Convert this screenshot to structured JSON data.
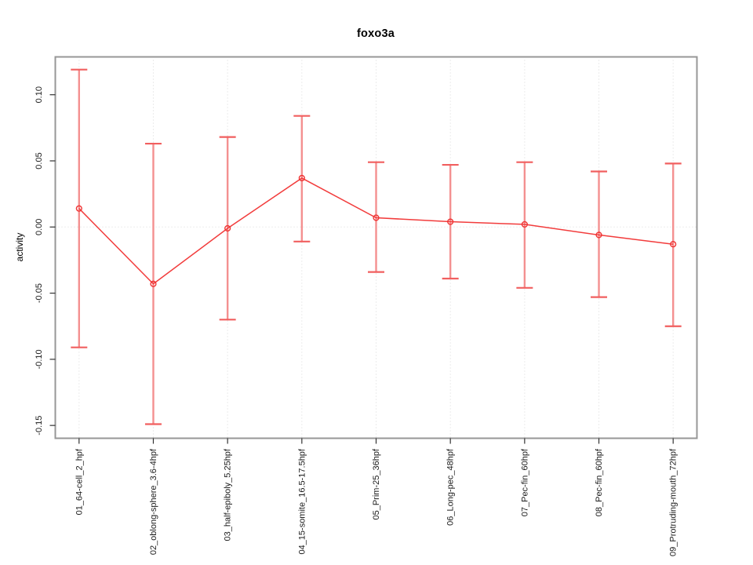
{
  "title": "foxo3a",
  "y_axis_title": "activity",
  "chart_data": {
    "type": "line",
    "title": "foxo3a",
    "xlabel": "",
    "ylabel": "activity",
    "categories": [
      "01_64-cell_2_hpf",
      "02_oblong-sphere_3.6-4hpf",
      "03_half-epiboly_5.25hpf",
      "04_15-somite_16.5-17.5hpf",
      "05_Prim-25_36hpf",
      "06_Long-pec_48hpf",
      "07_Pec-fin_60hpf",
      "08_Pec-fin_60hpf",
      "09_Protruding-mouth_72hpf"
    ],
    "series": [
      {
        "name": "activity",
        "values": [
          0.014,
          -0.043,
          -0.001,
          0.037,
          0.007,
          0.004,
          0.002,
          -0.006,
          -0.013
        ],
        "lower": [
          -0.091,
          -0.149,
          -0.07,
          -0.011,
          -0.034,
          -0.039,
          -0.046,
          -0.053,
          -0.075
        ],
        "upper": [
          0.119,
          0.063,
          0.068,
          0.084,
          0.049,
          0.047,
          0.049,
          0.042,
          0.048
        ]
      }
    ],
    "ylim": [
      -0.1597,
      0.1286
    ],
    "yticks": [
      0.1,
      0.05,
      0.0,
      -0.05,
      -0.1,
      -0.15
    ],
    "ytick_labels": [
      "0.10",
      "0.05",
      "0.00",
      "-0.05",
      "-0.10",
      "-0.15"
    ],
    "grid": "dotted vertical gridline at each category; dotted horizontal line at y=0",
    "legend_position": "none",
    "marker": "open-circle",
    "colors": {
      "line": "#f23c3c",
      "marker": "#ef3434",
      "errorbar_line": "#f49090",
      "errorbar_cap": "#f15f5f",
      "gridline": "#d9d9d9",
      "zero_line": "#d9d9d9",
      "plot_border": "#979797",
      "tick": "#333333",
      "tick_label": "#1a1a1a",
      "background": "#ffffff"
    }
  }
}
